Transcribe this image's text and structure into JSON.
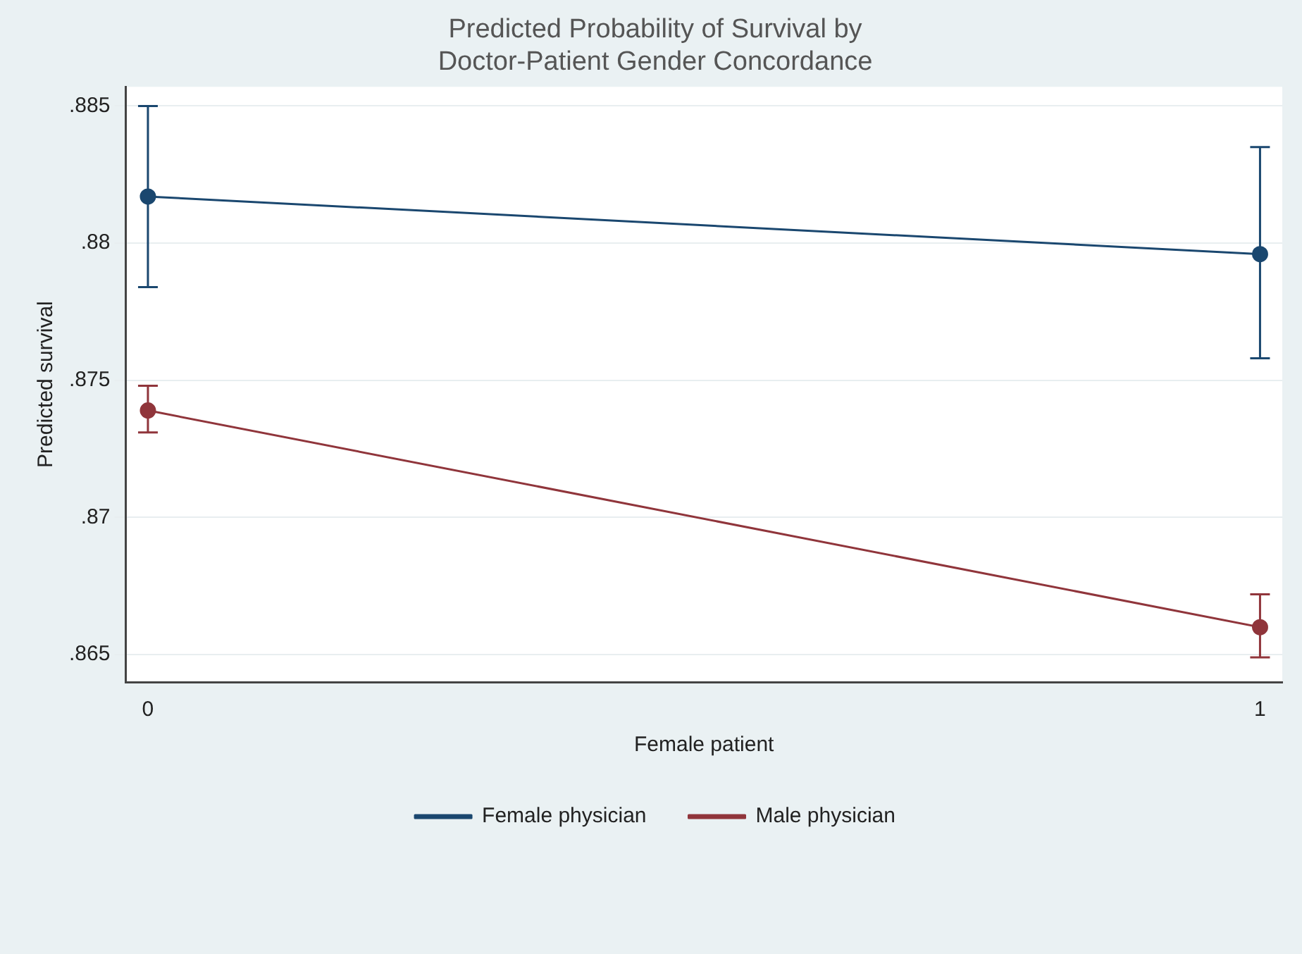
{
  "chart_data": {
    "type": "line",
    "title": [
      "Predicted Probability of Survival by",
      "Doctor-Patient Gender Concordance"
    ],
    "xlabel": "Female patient",
    "ylabel": "Predicted survival",
    "x": [
      0,
      1
    ],
    "xlim": [
      -0.02,
      1.02
    ],
    "xticks": [
      0,
      1
    ],
    "ylim": [
      0.864,
      0.8857
    ],
    "yticks": [
      {
        "value": 0.865,
        "label": ".865"
      },
      {
        "value": 0.87,
        "label": ".87"
      },
      {
        "value": 0.875,
        "label": ".875"
      },
      {
        "value": 0.88,
        "label": ".88"
      },
      {
        "value": 0.885,
        "label": ".885"
      }
    ],
    "series": [
      {
        "name": "Female physician",
        "color": "#1a476f",
        "values": [
          0.8817,
          0.8796
        ],
        "errors": [
          [
            0.8784,
            0.885
          ],
          [
            0.8758,
            0.8835
          ]
        ]
      },
      {
        "name": "Male physician",
        "color": "#90353b",
        "values": [
          0.8739,
          0.866
        ],
        "errors": [
          [
            0.8731,
            0.8748
          ],
          [
            0.8649,
            0.8672
          ]
        ]
      }
    ],
    "grid": "y",
    "legend": "bottom",
    "marker": "circle",
    "line_style": "solid"
  }
}
